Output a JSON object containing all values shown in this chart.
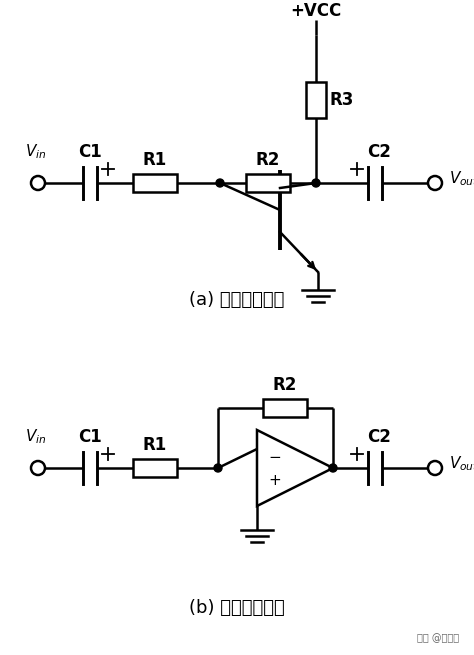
{
  "bg_color": "#ffffff",
  "line_color": "#000000",
  "title_a": "(a) 单管放大电路",
  "title_b": "(b) 视作运放之后",
  "watermark": "头条 @机电匠",
  "fig_width": 4.74,
  "fig_height": 6.55,
  "dpi": 100
}
